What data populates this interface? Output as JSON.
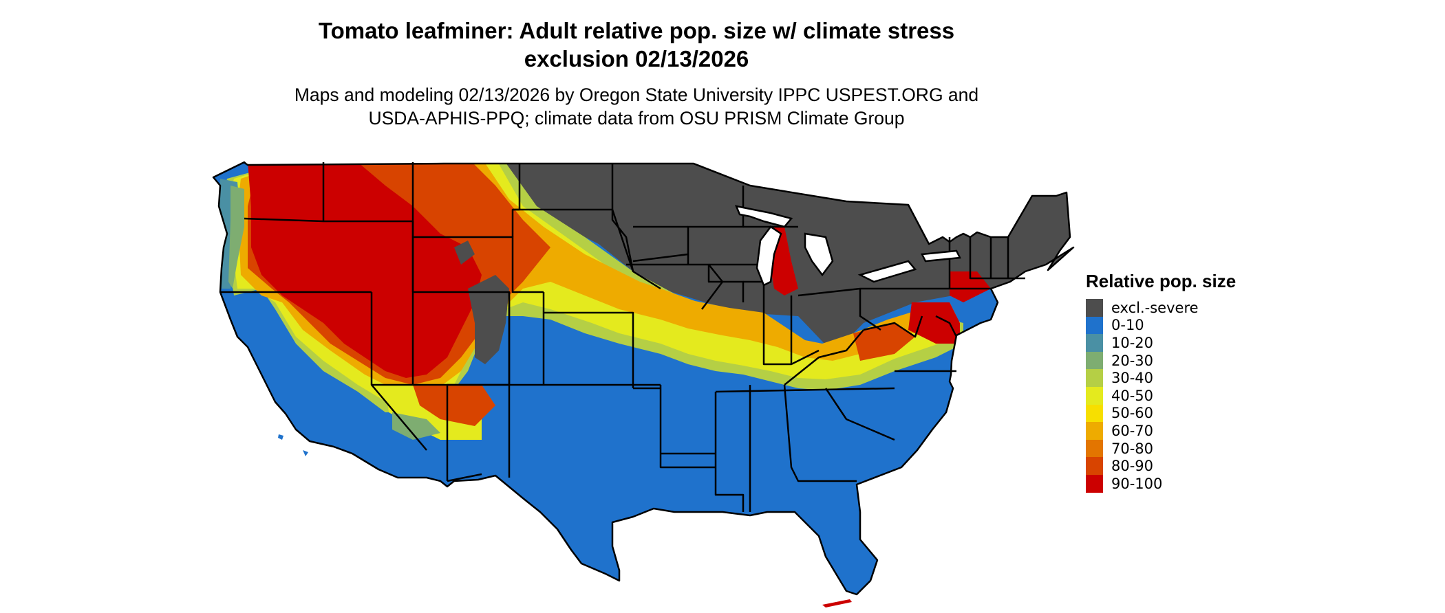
{
  "title_line1": "Tomato leafminer: Adult relative pop. size w/ climate stress",
  "title_line2": "exclusion 02/13/2026",
  "subtitle_line1": "Maps and modeling 02/13/2026 by Oregon State University IPPC USPEST.ORG and",
  "subtitle_line2": "USDA-APHIS-PPQ; climate data from OSU PRISM Climate Group",
  "legend": {
    "title": "Relative pop. size",
    "items": [
      {
        "label": "excl.-severe",
        "color": "#4d4d4d"
      },
      {
        "label": "0-10",
        "color": "#1f72cc"
      },
      {
        "label": "10-20",
        "color": "#4a90a4"
      },
      {
        "label": "20-30",
        "color": "#7ead71"
      },
      {
        "label": "30-40",
        "color": "#b5cf45"
      },
      {
        "label": "40-50",
        "color": "#e4ea1e"
      },
      {
        "label": "50-60",
        "color": "#f7df00"
      },
      {
        "label": "60-70",
        "color": "#eeab00"
      },
      {
        "label": "70-80",
        "color": "#e37500"
      },
      {
        "label": "80-90",
        "color": "#d84400"
      },
      {
        "label": "90-100",
        "color": "#cc0000"
      }
    ]
  }
}
